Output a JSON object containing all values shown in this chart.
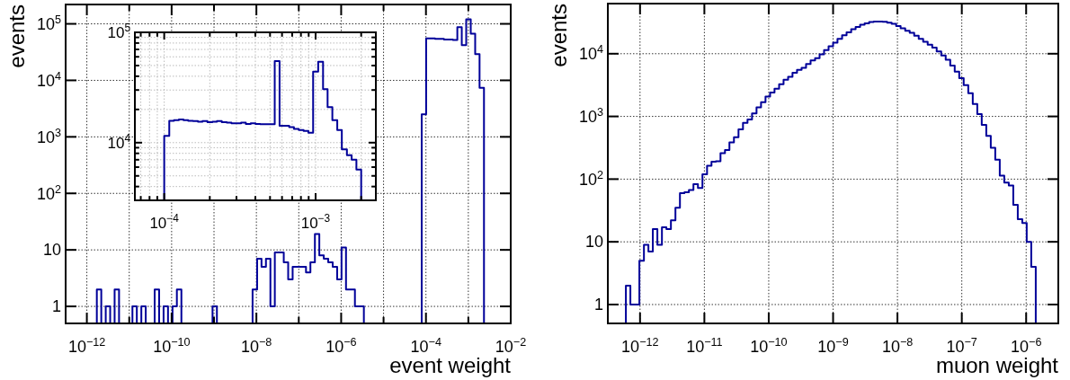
{
  "chart_data": [
    {
      "type": "histogram",
      "xlabel": "event weight",
      "ylabel": "events",
      "color": "#000099",
      "log": "xy",
      "grid": true,
      "xlim": [
        3.16e-13,
        0.01
      ],
      "ylim": [
        0.5,
        220000
      ],
      "xticks": [
        {
          "value": 1e-12,
          "label": "10$^{−12}$"
        },
        {
          "value": 1e-11,
          "label": null
        },
        {
          "value": 1e-10,
          "label": "10$^{−10}$"
        },
        {
          "value": 1e-09,
          "label": null
        },
        {
          "value": 1e-08,
          "label": "10$^{−8}$"
        },
        {
          "value": 1e-07,
          "label": null
        },
        {
          "value": 1e-06,
          "label": "10$^{−6}$"
        },
        {
          "value": 1e-05,
          "label": null
        },
        {
          "value": 0.0001,
          "label": "10$^{−4}$"
        },
        {
          "value": 0.001,
          "label": null
        },
        {
          "value": 0.01,
          "label": "10$^{−2}$"
        }
      ],
      "yticks": [
        {
          "value": 1,
          "label": "1"
        },
        {
          "value": 10,
          "label": "10"
        },
        {
          "value": 100,
          "label": "10$^{2}$"
        },
        {
          "value": 1000,
          "label": "10$^{3}$"
        },
        {
          "value": 10000,
          "label": "10$^{4}$"
        },
        {
          "value": 100000,
          "label": "10$^{5}$"
        }
      ],
      "bins": [
        3.16e-13,
        4.03e-13,
        5.13e-13,
        6.53e-13,
        8.32e-13,
        1.06e-12,
        1.35e-12,
        1.72e-12,
        2.19e-12,
        2.79e-12,
        3.55e-12,
        4.52e-12,
        5.75e-12,
        7.33e-12,
        9.33e-12,
        1.19e-11,
        1.51e-11,
        1.93e-11,
        2.45e-11,
        3.13e-11,
        3.98e-11,
        5.07e-11,
        6.46e-11,
        8.22e-11,
        1.05e-10,
        1.33e-10,
        1.7e-10,
        2.16e-10,
        2.75e-10,
        3.51e-10,
        4.47e-10,
        5.69e-10,
        7.24e-10,
        9.23e-10,
        1.17e-09,
        1.5e-09,
        1.91e-09,
        2.43e-09,
        3.09e-09,
        3.94e-09,
        5.01e-09,
        6.38e-09,
        8.13e-09,
        1.04e-08,
        1.32e-08,
        1.68e-08,
        2.14e-08,
        2.72e-08,
        3.47e-08,
        4.42e-08,
        5.62e-08,
        7.16e-08,
        9.12e-08,
        1.16e-07,
        1.48e-07,
        1.88e-07,
        2.4e-07,
        3.05e-07,
        3.89e-07,
        4.95e-07,
        6.31e-07,
        8.04e-07,
        1.02e-06,
        1.3e-06,
        1.66e-06,
        2.11e-06,
        2.69e-06,
        3.43e-06,
        4.37e-06,
        5.56e-06,
        7.08e-06,
        9.02e-06,
        1.15e-05,
        1.46e-05,
        1.86e-05,
        2.37e-05,
        3.02e-05,
        3.85e-05,
        4.9e-05,
        6.24e-05,
        7.94e-05,
        0.000101,
        0.000129,
        0.000164,
        0.000209,
        0.000266,
        0.000339,
        0.000432,
        0.00055,
        0.0007,
        0.000891,
        0.00114,
        0.00145,
        0.00184,
        0.00234,
        0.00299,
        0.0038,
        0.00484,
        0.00617,
        0.00785,
        0.01
      ],
      "values": [
        null,
        null,
        null,
        null,
        null,
        null,
        null,
        2,
        null,
        1,
        null,
        2,
        null,
        null,
        null,
        1,
        null,
        1,
        null,
        null,
        2,
        null,
        1,
        null,
        1,
        2,
        null,
        null,
        null,
        null,
        null,
        null,
        null,
        1,
        null,
        null,
        null,
        null,
        null,
        null,
        null,
        null,
        2,
        7,
        5,
        7,
        1,
        9,
        9,
        6,
        3,
        5,
        5,
        5,
        4,
        6,
        19,
        8,
        7,
        6,
        5,
        3,
        11,
        2,
        2,
        1,
        1,
        null,
        null,
        null,
        null,
        null,
        null,
        null,
        null,
        null,
        null,
        null,
        null,
        null,
        2500,
        55000,
        55000,
        54000,
        54000,
        53000,
        53000,
        52000,
        87000,
        42000,
        120000,
        67000,
        29000,
        7400,
        null,
        null,
        null,
        null,
        null,
        null
      ]
    },
    {
      "type": "histogram",
      "color": "#000099",
      "log": "xy",
      "grid": true,
      "xlim": [
        6.4e-05,
        0.0025
      ],
      "ylim": [
        3000,
        100000
      ],
      "xticks": [
        {
          "value": 7e-05,
          "label": null
        },
        {
          "value": 8e-05,
          "label": null
        },
        {
          "value": 9e-05,
          "label": null
        },
        {
          "value": 0.0001,
          "label": "10$^{−4}$"
        },
        {
          "value": 0.0002,
          "label": null
        },
        {
          "value": 0.0003,
          "label": null
        },
        {
          "value": 0.0004,
          "label": null
        },
        {
          "value": 0.0005,
          "label": null
        },
        {
          "value": 0.0006,
          "label": null
        },
        {
          "value": 0.0007,
          "label": null
        },
        {
          "value": 0.0008,
          "label": null
        },
        {
          "value": 0.0009,
          "label": null
        },
        {
          "value": 0.001,
          "label": "10$^{−3}$"
        },
        {
          "value": 0.002,
          "label": null
        }
      ],
      "yticks": [
        {
          "value": 4000,
          "label": null
        },
        {
          "value": 5000,
          "label": null
        },
        {
          "value": 6000,
          "label": null
        },
        {
          "value": 7000,
          "label": null
        },
        {
          "value": 8000,
          "label": null
        },
        {
          "value": 9000,
          "label": null
        },
        {
          "value": 10000,
          "label": "10$^{4}$"
        },
        {
          "value": 20000,
          "label": null
        },
        {
          "value": 30000,
          "label": null
        },
        {
          "value": 40000,
          "label": null
        },
        {
          "value": 50000,
          "label": null
        },
        {
          "value": 60000,
          "label": null
        },
        {
          "value": 70000,
          "label": null
        },
        {
          "value": 80000,
          "label": null
        },
        {
          "value": 90000,
          "label": null
        },
        {
          "value": 100000,
          "label": "10$^{5}$"
        }
      ],
      "bins": [
        0.0001,
        0.000108,
        0.000116,
        0.000125,
        0.000134,
        0.000144,
        0.000155,
        0.000167,
        0.000179,
        0.000193,
        0.000208,
        0.000223,
        0.00024,
        0.000259,
        0.000278,
        0.000299,
        0.000322,
        0.000346,
        0.000373,
        0.000401,
        0.000431,
        0.000464,
        0.000499,
        0.000537,
        0.000578,
        0.000622,
        0.000669,
        0.000719,
        0.000774,
        0.000833,
        0.000896,
        0.000963,
        0.00104,
        0.00112,
        0.0012,
        0.00129,
        0.00139,
        0.00149,
        0.00161,
        0.00173,
        0.00186,
        0.002
      ],
      "values": [
        11500,
        15800,
        16000,
        16200,
        16000,
        15800,
        15700,
        15500,
        15700,
        15300,
        15500,
        15700,
        15300,
        15200,
        15000,
        15000,
        15200,
        14800,
        15000,
        14800,
        14700,
        14700,
        14700,
        55000,
        14200,
        14200,
        13800,
        13300,
        13000,
        12800,
        12300,
        44000,
        54000,
        30500,
        21000,
        16000,
        13000,
        8700,
        7700,
        7000,
        5700
      ]
    },
    {
      "type": "histogram",
      "xlabel": "muon weight",
      "ylabel": "events",
      "color": "#000099",
      "log": "xy",
      "grid": true,
      "xlim": [
        3.16e-13,
        3.16e-06
      ],
      "ylim": [
        0.5,
        63000
      ],
      "xticks": [
        {
          "value": 1e-12,
          "label": "10$^{−12}$"
        },
        {
          "value": 1e-11,
          "label": "10$^{−11}$"
        },
        {
          "value": 1e-10,
          "label": "10$^{−10}$"
        },
        {
          "value": 1e-09,
          "label": "10$^{−9}$"
        },
        {
          "value": 1e-08,
          "label": "10$^{−8}$"
        },
        {
          "value": 1e-07,
          "label": "10$^{−7}$"
        },
        {
          "value": 1e-06,
          "label": "10$^{−6}$"
        }
      ],
      "yticks": [
        {
          "value": 1,
          "label": "1"
        },
        {
          "value": 10,
          "label": "10"
        },
        {
          "value": 100,
          "label": "10$^{2}$"
        },
        {
          "value": 1000,
          "label": "10$^{3}$"
        },
        {
          "value": 10000,
          "label": "10$^{4}$"
        }
      ],
      "bins": [
        3.16e-13,
        3.72e-13,
        4.37e-13,
        5.13e-13,
        6.03e-13,
        7.08e-13,
        8.32e-13,
        9.77e-13,
        1.15e-12,
        1.35e-12,
        1.58e-12,
        1.86e-12,
        2.19e-12,
        2.57e-12,
        3.02e-12,
        3.55e-12,
        4.17e-12,
        4.9e-12,
        5.75e-12,
        6.76e-12,
        7.94e-12,
        9.33e-12,
        1.1e-11,
        1.29e-11,
        1.51e-11,
        1.78e-11,
        2.09e-11,
        2.45e-11,
        2.88e-11,
        3.39e-11,
        3.98e-11,
        4.68e-11,
        5.5e-11,
        6.46e-11,
        7.59e-11,
        8.91e-11,
        1.05e-10,
        1.23e-10,
        1.45e-10,
        1.7e-10,
        2e-10,
        2.34e-10,
        2.75e-10,
        3.24e-10,
        3.8e-10,
        4.47e-10,
        5.25e-10,
        6.17e-10,
        7.24e-10,
        8.51e-10,
        1e-09,
        1.17e-09,
        1.38e-09,
        1.62e-09,
        1.91e-09,
        2.24e-09,
        2.63e-09,
        3.09e-09,
        3.63e-09,
        4.27e-09,
        5.01e-09,
        5.89e-09,
        6.92e-09,
        8.13e-09,
        9.55e-09,
        1.12e-08,
        1.32e-08,
        1.55e-08,
        1.82e-08,
        2.14e-08,
        2.51e-08,
        2.95e-08,
        3.47e-08,
        4.07e-08,
        4.79e-08,
        5.62e-08,
        6.61e-08,
        7.76e-08,
        9.12e-08,
        1.07e-07,
        1.26e-07,
        1.48e-07,
        1.74e-07,
        2.04e-07,
        2.4e-07,
        2.82e-07,
        3.31e-07,
        3.89e-07,
        4.57e-07,
        5.37e-07,
        6.31e-07,
        7.41e-07,
        8.71e-07,
        1.02e-06,
        1.2e-06,
        1.41e-06,
        1.66e-06,
        1.95e-06,
        2.29e-06,
        2.69e-06,
        3.16e-06
      ],
      "values": [
        null,
        null,
        null,
        null,
        2,
        1,
        1,
        5,
        9,
        7,
        16,
        9,
        17,
        16,
        22,
        35,
        60,
        62,
        67,
        83,
        72,
        119,
        163,
        189,
        193,
        260,
        292,
        385,
        465,
        620,
        790,
        895,
        1120,
        1400,
        1690,
        2070,
        2400,
        2760,
        3270,
        3860,
        4300,
        4950,
        5530,
        5960,
        6880,
        7800,
        8500,
        9800,
        11400,
        13200,
        15000,
        17300,
        19700,
        22000,
        24600,
        26800,
        29000,
        30600,
        32000,
        32700,
        32700,
        32300,
        31300,
        30000,
        27700,
        25400,
        23300,
        21500,
        19300,
        17300,
        15500,
        13900,
        12500,
        10900,
        9360,
        8030,
        6450,
        5180,
        4080,
        3160,
        2350,
        1580,
        1090,
        736,
        490,
        316,
        204,
        114,
        88,
        79,
        39,
        23,
        20,
        10,
        4,
        null,
        null,
        null,
        null,
        null
      ]
    }
  ]
}
